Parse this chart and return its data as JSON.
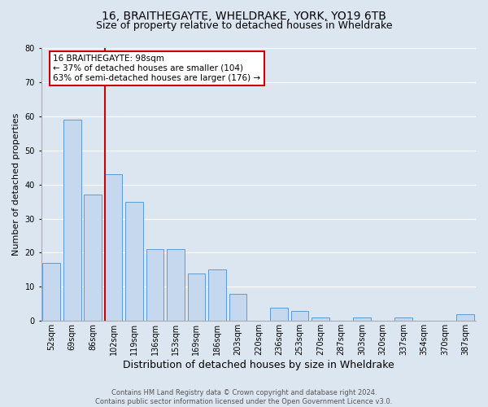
{
  "title_line1": "16, BRAITHEGAYTE, WHELDRAKE, YORK, YO19 6TB",
  "title_line2": "Size of property relative to detached houses in Wheldrake",
  "xlabel": "Distribution of detached houses by size in Wheldrake",
  "ylabel": "Number of detached properties",
  "bar_labels": [
    "52sqm",
    "69sqm",
    "86sqm",
    "102sqm",
    "119sqm",
    "136sqm",
    "153sqm",
    "169sqm",
    "186sqm",
    "203sqm",
    "220sqm",
    "236sqm",
    "253sqm",
    "270sqm",
    "287sqm",
    "303sqm",
    "320sqm",
    "337sqm",
    "354sqm",
    "370sqm",
    "387sqm"
  ],
  "bar_values": [
    17,
    59,
    37,
    43,
    35,
    21,
    21,
    14,
    15,
    8,
    0,
    4,
    3,
    1,
    0,
    1,
    0,
    1,
    0,
    0,
    2
  ],
  "bar_color": "#c5d8ed",
  "bar_edge_color": "#5b9bd5",
  "property_line_index": 3,
  "annotation_title": "16 BRAITHEGAYTE: 98sqm",
  "annotation_line2": "← 37% of detached houses are smaller (104)",
  "annotation_line3": "63% of semi-detached houses are larger (176) →",
  "annotation_box_color": "#ffffff",
  "annotation_box_edge": "#cc0000",
  "property_line_color": "#cc0000",
  "ylim": [
    0,
    80
  ],
  "yticks": [
    0,
    10,
    20,
    30,
    40,
    50,
    60,
    70,
    80
  ],
  "grid_color": "#ffffff",
  "bg_color": "#dce6f1",
  "footer_line1": "Contains HM Land Registry data © Crown copyright and database right 2024.",
  "footer_line2": "Contains public sector information licensed under the Open Government Licence v3.0.",
  "title1_fontsize": 10,
  "title2_fontsize": 9,
  "xlabel_fontsize": 9,
  "ylabel_fontsize": 8,
  "tick_fontsize": 7,
  "footer_fontsize": 6,
  "ann_fontsize": 7.5
}
